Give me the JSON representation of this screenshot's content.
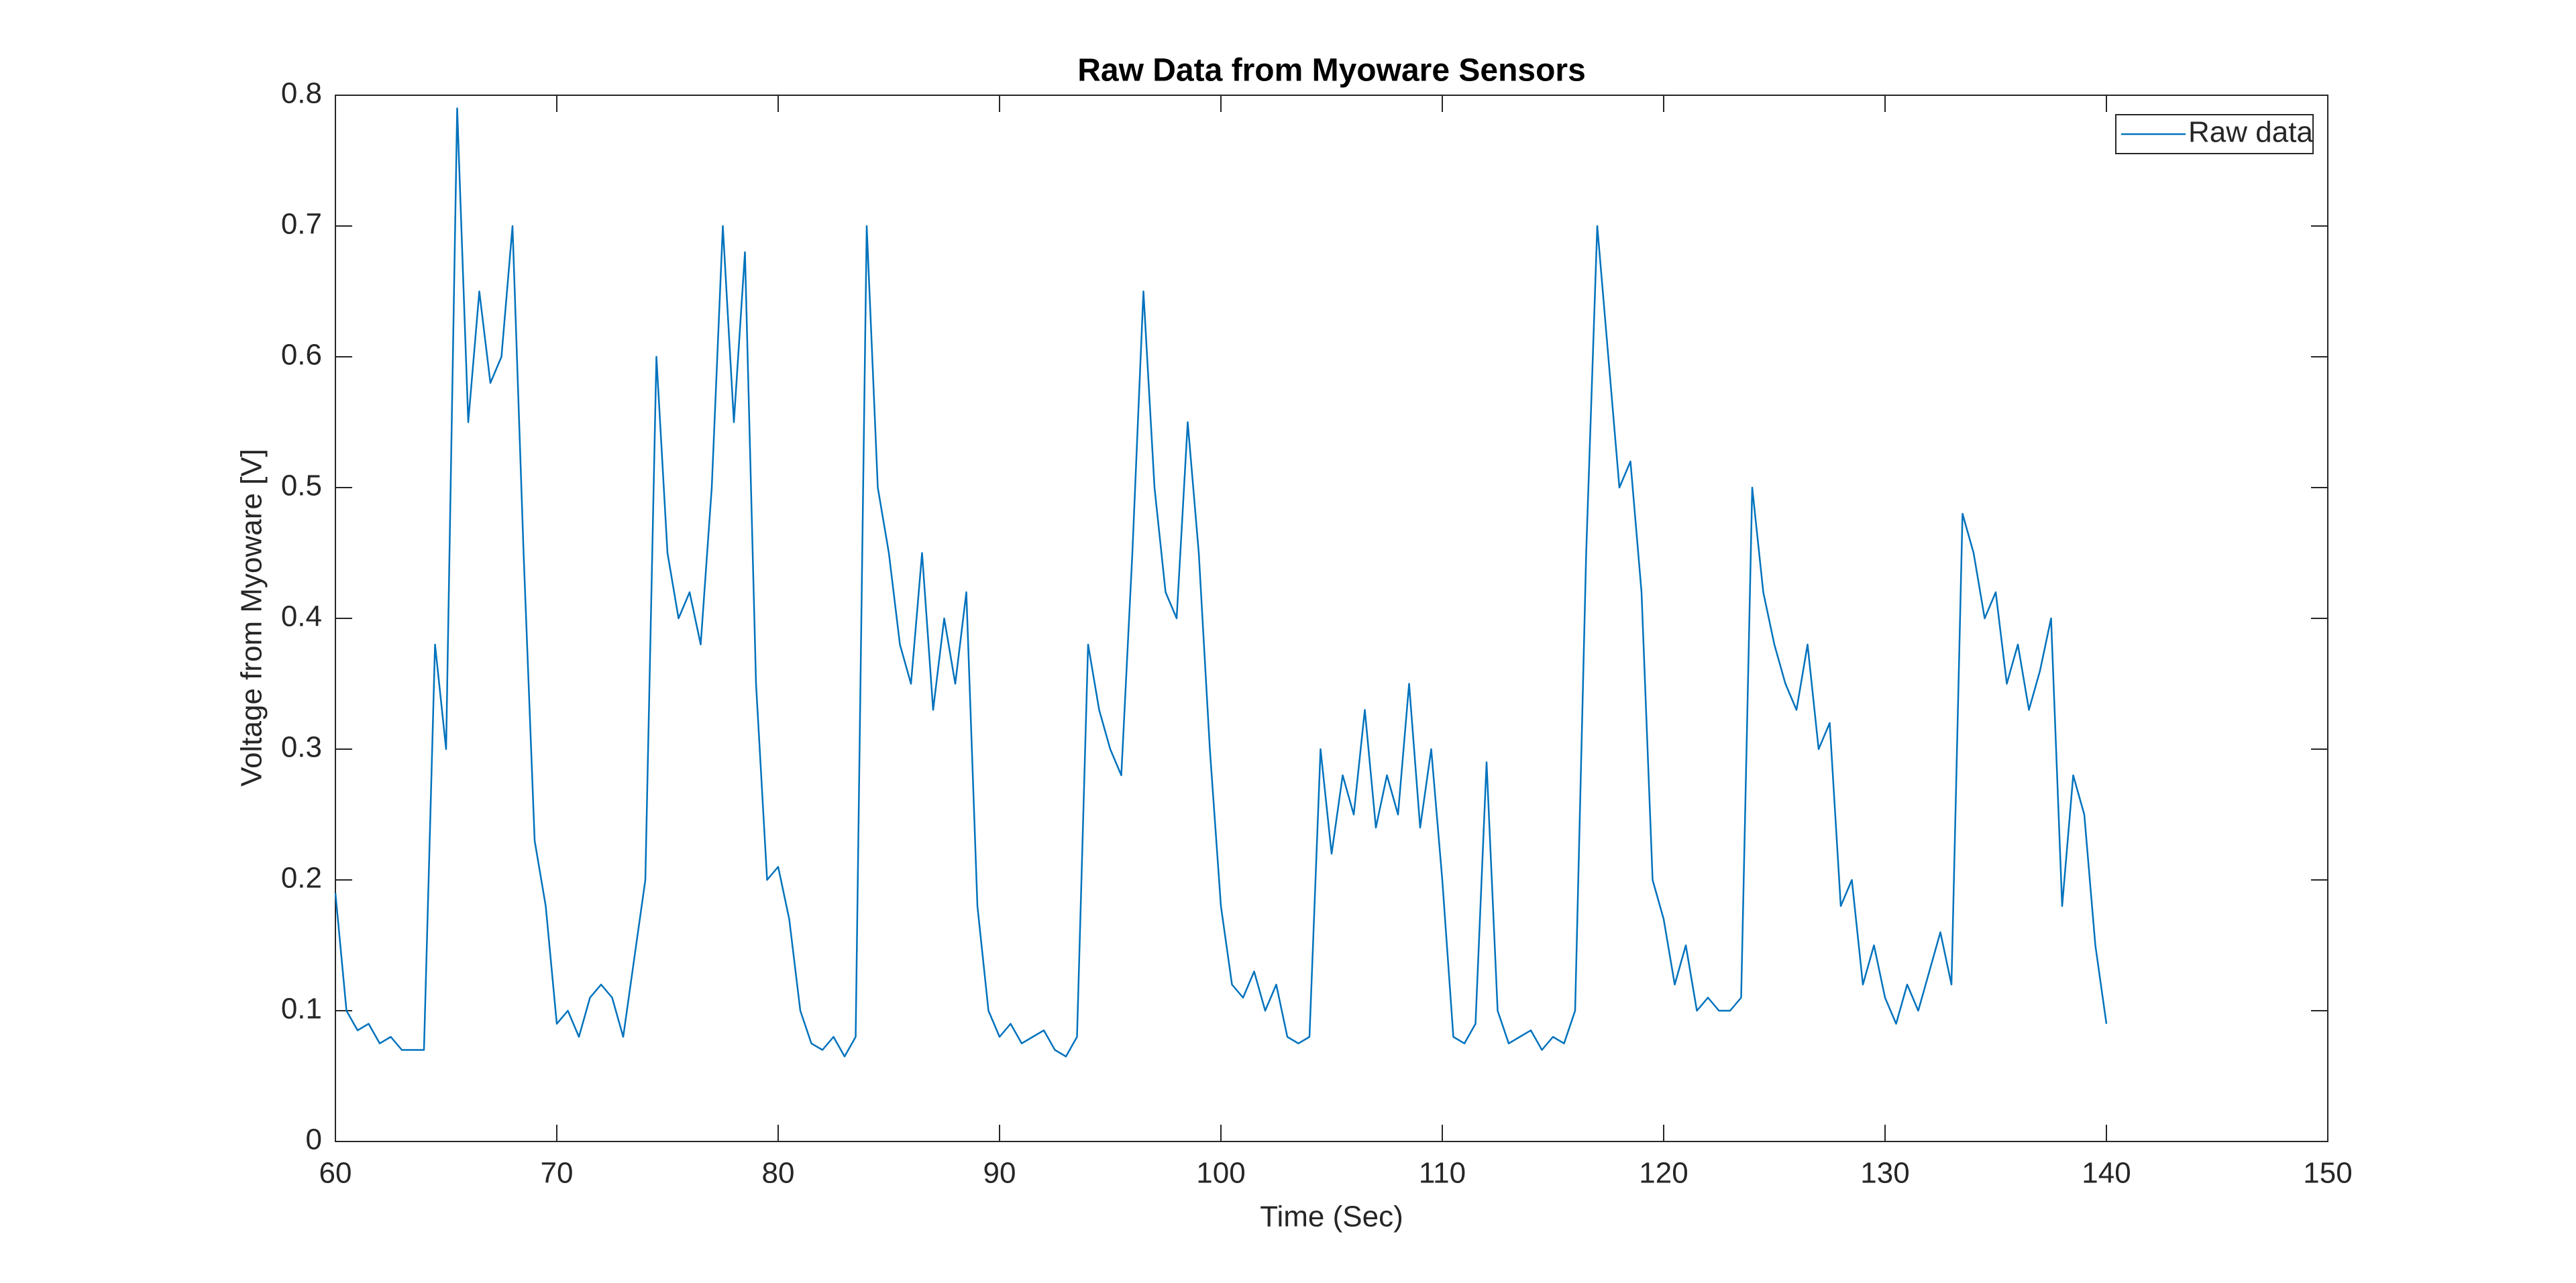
{
  "chart_data": {
    "type": "line",
    "title": "Raw Data from Myoware Sensors",
    "x_label": "Time (Sec)",
    "y_label": "Voltage from Myoware [V]",
    "x": [
      60,
      60.5,
      61,
      61.5,
      62,
      62.5,
      63,
      63.5,
      64,
      64.5,
      65,
      65.5,
      66,
      66.5,
      67,
      67.5,
      68,
      68.5,
      69,
      69.5,
      70,
      70.5,
      71,
      71.5,
      72,
      72.5,
      73,
      73.5,
      74,
      74.5,
      75,
      75.5,
      76,
      76.5,
      77,
      77.5,
      78,
      78.5,
      79,
      79.5,
      80,
      80.5,
      81,
      81.5,
      82,
      82.5,
      83,
      83.5,
      84,
      84.5,
      85,
      85.5,
      86,
      86.5,
      87,
      87.5,
      88,
      88.5,
      89,
      89.5,
      90,
      90.5,
      91,
      91.5,
      92,
      92.5,
      93,
      93.5,
      94,
      94.5,
      95,
      95.5,
      96,
      96.5,
      97,
      97.5,
      98,
      98.5,
      99,
      99.5,
      100,
      100.5,
      101,
      101.5,
      102,
      102.5,
      103,
      103.5,
      104,
      104.5,
      105,
      105.5,
      106,
      106.5,
      107,
      107.5,
      108,
      108.5,
      109,
      109.5,
      110,
      110.5,
      111,
      111.5,
      112,
      112.5,
      113,
      113.5,
      114,
      114.5,
      115,
      115.5,
      116,
      116.5,
      117,
      117.5,
      118,
      118.5,
      119,
      119.5,
      120,
      120.5,
      121,
      121.5,
      122,
      122.5,
      123,
      123.5,
      124,
      124.5,
      125,
      125.5,
      126,
      126.5,
      127,
      127.5,
      128,
      128.5,
      129,
      129.5,
      130,
      130.5,
      131,
      131.5,
      132,
      132.5,
      133,
      133.5,
      134,
      134.5,
      135,
      135.5,
      136,
      136.5,
      137,
      137.5,
      138,
      138.5,
      139,
      139.5,
      140
    ],
    "series": [
      {
        "name": "Raw data",
        "color": "#0072bd",
        "values": [
          0.19,
          0.1,
          0.085,
          0.09,
          0.075,
          0.08,
          0.07,
          0.07,
          0.07,
          0.38,
          0.3,
          0.79,
          0.55,
          0.65,
          0.58,
          0.6,
          0.7,
          0.45,
          0.23,
          0.18,
          0.09,
          0.1,
          0.08,
          0.11,
          0.12,
          0.11,
          0.08,
          0.14,
          0.2,
          0.6,
          0.45,
          0.4,
          0.42,
          0.38,
          0.5,
          0.7,
          0.55,
          0.68,
          0.35,
          0.2,
          0.21,
          0.17,
          0.1,
          0.075,
          0.07,
          0.08,
          0.065,
          0.08,
          0.7,
          0.5,
          0.45,
          0.38,
          0.35,
          0.45,
          0.33,
          0.4,
          0.35,
          0.42,
          0.18,
          0.1,
          0.08,
          0.09,
          0.075,
          0.08,
          0.085,
          0.07,
          0.065,
          0.08,
          0.38,
          0.33,
          0.3,
          0.28,
          0.45,
          0.65,
          0.5,
          0.42,
          0.4,
          0.55,
          0.45,
          0.3,
          0.18,
          0.12,
          0.11,
          0.13,
          0.1,
          0.12,
          0.08,
          0.075,
          0.08,
          0.3,
          0.22,
          0.28,
          0.25,
          0.33,
          0.24,
          0.28,
          0.25,
          0.35,
          0.24,
          0.3,
          0.2,
          0.08,
          0.075,
          0.09,
          0.29,
          0.1,
          0.075,
          0.08,
          0.085,
          0.07,
          0.08,
          0.075,
          0.1,
          0.45,
          0.7,
          0.6,
          0.5,
          0.52,
          0.42,
          0.2,
          0.17,
          0.12,
          0.15,
          0.1,
          0.11,
          0.1,
          0.1,
          0.11,
          0.5,
          0.42,
          0.38,
          0.35,
          0.33,
          0.38,
          0.3,
          0.32,
          0.18,
          0.2,
          0.12,
          0.15,
          0.11,
          0.09,
          0.12,
          0.1,
          0.13,
          0.16,
          0.12,
          0.48,
          0.45,
          0.4,
          0.42,
          0.35,
          0.38,
          0.33,
          0.36,
          0.4,
          0.18,
          0.28,
          0.25,
          0.15,
          0.09
        ]
      }
    ],
    "xlim": [
      60,
      150
    ],
    "xticks": [
      60,
      70,
      80,
      90,
      100,
      110,
      120,
      130,
      140,
      150
    ],
    "ylim": [
      0,
      0.8
    ],
    "yticks": [
      0,
      0.1,
      0.2,
      0.3,
      0.4,
      0.5,
      0.6,
      0.7,
      0.8
    ],
    "grid": false,
    "legend": "upper right"
  }
}
